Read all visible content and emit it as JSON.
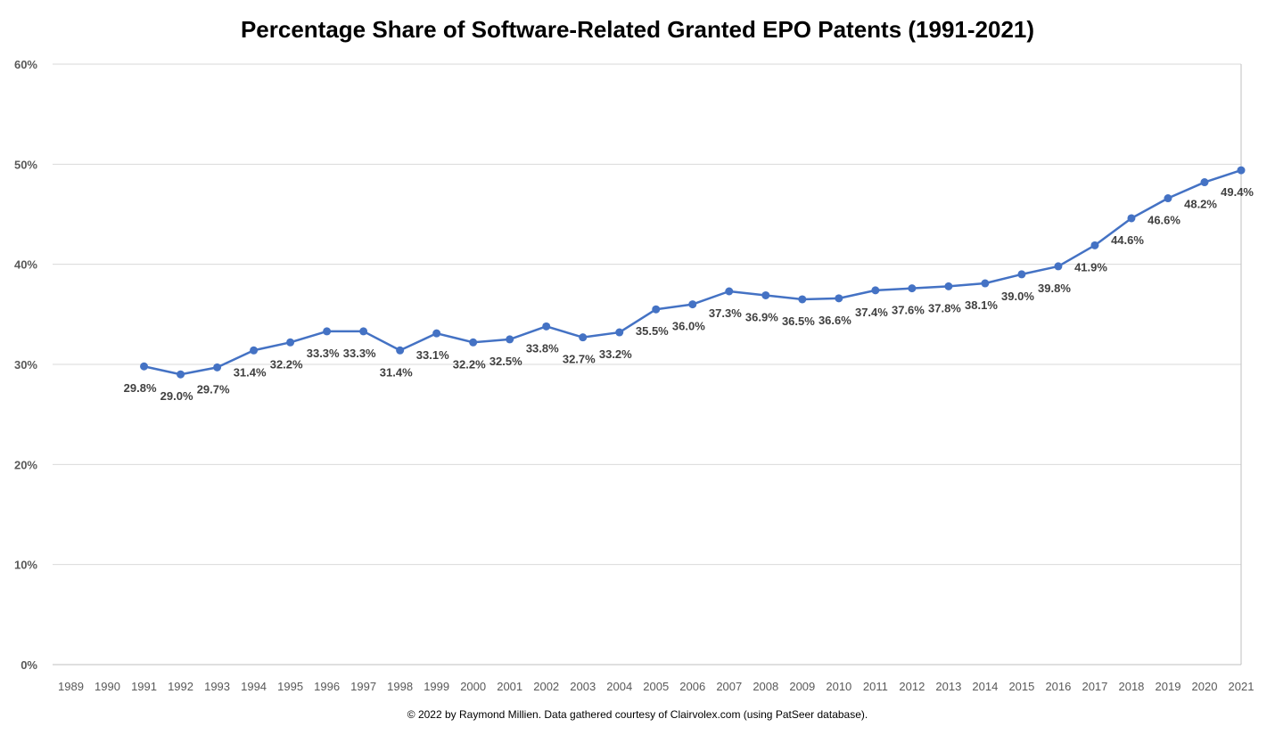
{
  "chart_data": {
    "type": "line",
    "title": "Percentage Share of Software-Related Granted EPO Patents (1991-2021)",
    "footnote": "© 2022 by Raymond Millien. Data gathered courtesy of Clairvolex.com (using PatSeer database).",
    "x_categories": [
      "1989",
      "1990",
      "1991",
      "1992",
      "1993",
      "1994",
      "1995",
      "1996",
      "1997",
      "1998",
      "1999",
      "2000",
      "2001",
      "2002",
      "2003",
      "2004",
      "2005",
      "2006",
      "2007",
      "2008",
      "2009",
      "2010",
      "2011",
      "2012",
      "2013",
      "2014",
      "2015",
      "2016",
      "2017",
      "2018",
      "2019",
      "2020",
      "2021"
    ],
    "y_ticks": [
      "0%",
      "10%",
      "20%",
      "30%",
      "40%",
      "50%",
      "60%"
    ],
    "ylim": [
      0,
      60
    ],
    "grid": true,
    "series": [
      {
        "color": "#4472c4",
        "points": [
          {
            "x": "1991",
            "y": 29.8,
            "label": "29.8%"
          },
          {
            "x": "1992",
            "y": 29.0,
            "label": "29.0%"
          },
          {
            "x": "1993",
            "y": 29.7,
            "label": "29.7%"
          },
          {
            "x": "1994",
            "y": 31.4,
            "label": "31.4%"
          },
          {
            "x": "1995",
            "y": 32.2,
            "label": "32.2%"
          },
          {
            "x": "1996",
            "y": 33.3,
            "label": "33.3%"
          },
          {
            "x": "1997",
            "y": 33.3,
            "label": "33.3%"
          },
          {
            "x": "1998",
            "y": 31.4,
            "label": "31.4%"
          },
          {
            "x": "1999",
            "y": 33.1,
            "label": "33.1%"
          },
          {
            "x": "2000",
            "y": 32.2,
            "label": "32.2%"
          },
          {
            "x": "2001",
            "y": 32.5,
            "label": "32.5%"
          },
          {
            "x": "2002",
            "y": 33.8,
            "label": "33.8%"
          },
          {
            "x": "2003",
            "y": 32.7,
            "label": "32.7%"
          },
          {
            "x": "2004",
            "y": 33.2,
            "label": "33.2%"
          },
          {
            "x": "2005",
            "y": 35.5,
            "label": "35.5%"
          },
          {
            "x": "2006",
            "y": 36.0,
            "label": "36.0%"
          },
          {
            "x": "2007",
            "y": 37.3,
            "label": "37.3%"
          },
          {
            "x": "2008",
            "y": 36.9,
            "label": "36.9%"
          },
          {
            "x": "2009",
            "y": 36.5,
            "label": "36.5%"
          },
          {
            "x": "2010",
            "y": 36.6,
            "label": "36.6%"
          },
          {
            "x": "2011",
            "y": 37.4,
            "label": "37.4%"
          },
          {
            "x": "2012",
            "y": 37.6,
            "label": "37.6%"
          },
          {
            "x": "2013",
            "y": 37.8,
            "label": "37.8%"
          },
          {
            "x": "2014",
            "y": 38.1,
            "label": "38.1%"
          },
          {
            "x": "2015",
            "y": 39.0,
            "label": "39.0%"
          },
          {
            "x": "2016",
            "y": 39.8,
            "label": "39.8%"
          },
          {
            "x": "2017",
            "y": 41.9,
            "label": "41.9%"
          },
          {
            "x": "2018",
            "y": 44.6,
            "label": "44.6%"
          },
          {
            "x": "2019",
            "y": 46.6,
            "label": "46.6%"
          },
          {
            "x": "2020",
            "y": 48.2,
            "label": "48.2%"
          },
          {
            "x": "2021",
            "y": 49.4,
            "label": "49.4%"
          }
        ]
      }
    ]
  }
}
